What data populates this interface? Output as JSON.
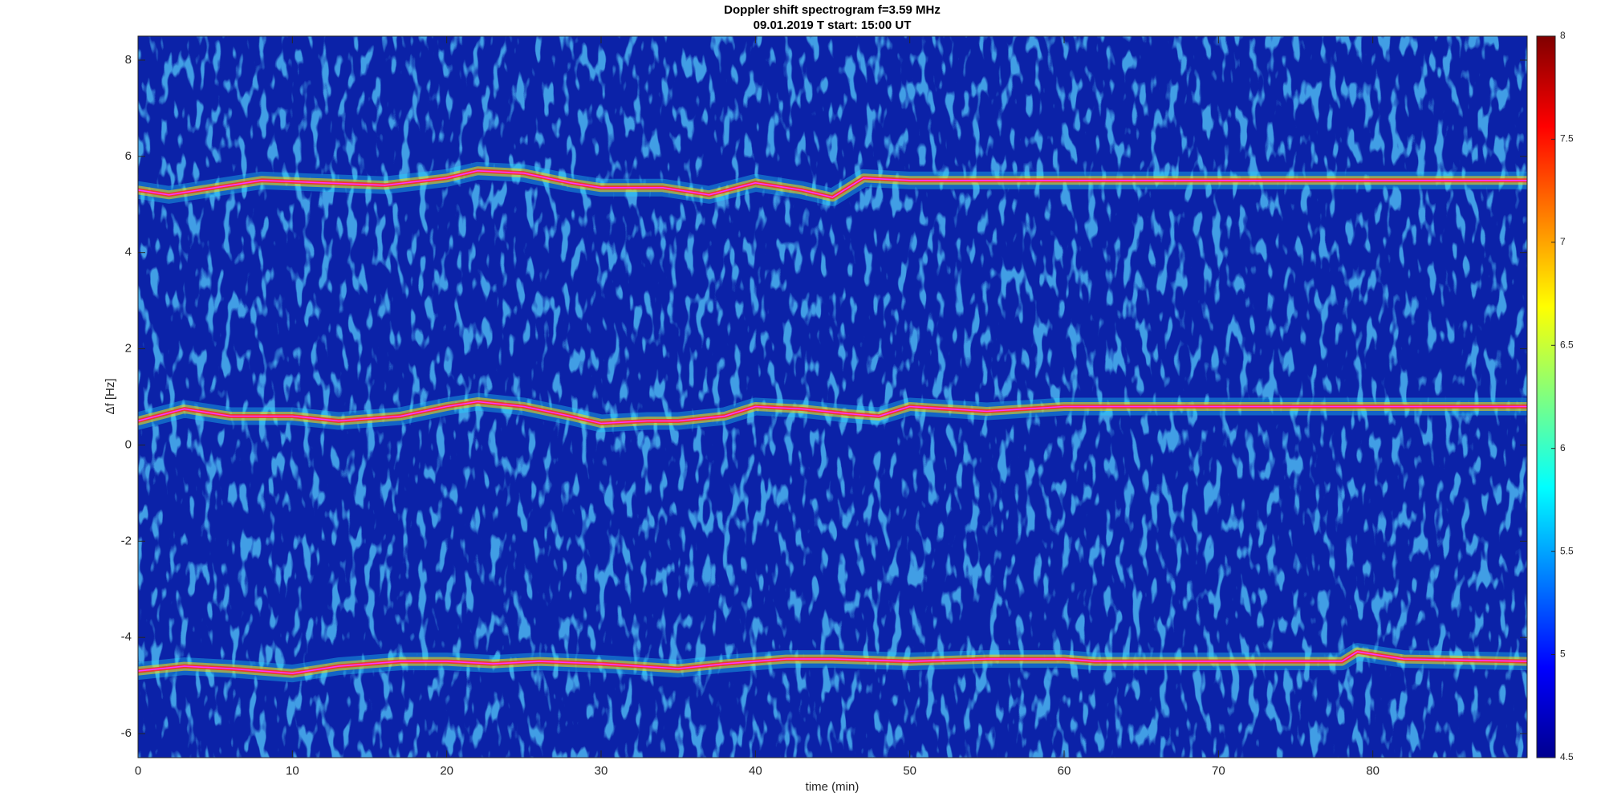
{
  "chart_data": {
    "type": "spectrogram",
    "title": "Doppler shift spectrogram f=3.59 MHz",
    "subtitle": "09.01.2019   T start: 15:00 UT",
    "xlabel": "time (min)",
    "ylabel": "Δf [Hz]",
    "xlim": [
      0,
      90
    ],
    "xticks": [
      0,
      10,
      20,
      30,
      40,
      50,
      60,
      70,
      80
    ],
    "ylim": [
      -6.5,
      8.5
    ],
    "yticks": [
      -6,
      -4,
      -2,
      0,
      2,
      4,
      6,
      8
    ],
    "clim": [
      4.5,
      8
    ],
    "cticks": [
      4.5,
      5,
      5.5,
      6,
      6.5,
      7,
      7.5,
      8
    ],
    "series": [
      {
        "color": "#ff33ff",
        "x": [
          0,
          2,
          5,
          8,
          12,
          16,
          20,
          22,
          25,
          28,
          30,
          34,
          37,
          40,
          43,
          45,
          47,
          50,
          55,
          60,
          70,
          80,
          90
        ],
        "values": [
          5.3,
          5.2,
          5.35,
          5.5,
          5.45,
          5.4,
          5.55,
          5.7,
          5.65,
          5.45,
          5.35,
          5.35,
          5.2,
          5.45,
          5.3,
          5.15,
          5.55,
          5.5,
          5.5,
          5.5,
          5.5,
          5.5,
          5.5
        ]
      },
      {
        "color": "#ff33ff",
        "x": [
          0,
          3,
          6,
          10,
          13,
          17,
          20,
          22,
          25,
          28,
          30,
          33,
          35,
          38,
          40,
          43,
          46,
          48,
          50,
          55,
          60,
          70,
          80,
          90
        ],
        "values": [
          0.5,
          0.75,
          0.6,
          0.6,
          0.5,
          0.6,
          0.8,
          0.9,
          0.8,
          0.6,
          0.45,
          0.5,
          0.5,
          0.6,
          0.8,
          0.75,
          0.65,
          0.6,
          0.8,
          0.7,
          0.8,
          0.8,
          0.8,
          0.8
        ]
      },
      {
        "color": "#ff33ff",
        "x": [
          0,
          3,
          6,
          10,
          13,
          17,
          20,
          23,
          26,
          30,
          35,
          38,
          42,
          45,
          50,
          55,
          60,
          62,
          70,
          78,
          79,
          82,
          90
        ],
        "values": [
          -4.7,
          -4.6,
          -4.65,
          -4.75,
          -4.6,
          -4.5,
          -4.5,
          -4.55,
          -4.5,
          -4.55,
          -4.65,
          -4.55,
          -4.45,
          -4.45,
          -4.5,
          -4.45,
          -4.45,
          -4.5,
          -4.5,
          -4.5,
          -4.3,
          -4.45,
          -4.5
        ]
      }
    ]
  }
}
